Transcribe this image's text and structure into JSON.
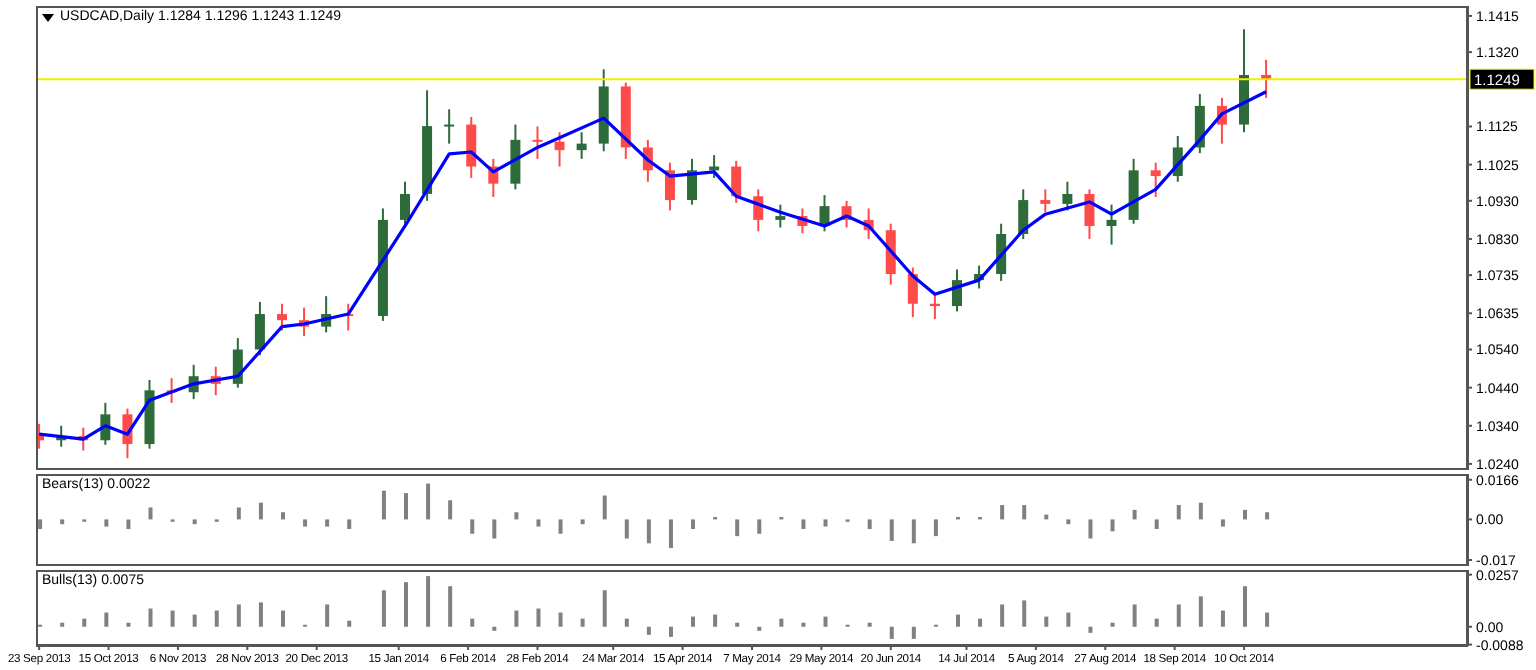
{
  "chart_data": [
    {
      "type": "candlestick",
      "title": "USDCAD,Daily 1.1284 1.1296 1.1243 1.1249",
      "x": [
        "2013-09-23",
        "2013-09-30",
        "2013-10-07",
        "2013-10-14",
        "2013-10-21",
        "2013-10-28",
        "2013-11-04",
        "2013-11-11",
        "2013-11-18",
        "2013-11-25",
        "2013-12-02",
        "2013-12-09",
        "2013-12-16",
        "2013-12-23",
        "2013-12-30",
        "2014-01-10",
        "2014-01-17",
        "2014-01-24",
        "2014-01-31",
        "2014-02-07",
        "2014-02-14",
        "2014-02-21",
        "2014-02-28",
        "2014-03-07",
        "2014-03-14",
        "2014-03-21",
        "2014-03-28",
        "2014-04-04",
        "2014-04-11",
        "2014-04-18",
        "2014-04-25",
        "2014-05-02",
        "2014-05-09",
        "2014-05-16",
        "2014-05-23",
        "2014-05-30",
        "2014-06-06",
        "2014-06-13",
        "2014-06-20",
        "2014-06-27",
        "2014-07-04",
        "2014-07-11",
        "2014-07-18",
        "2014-07-25",
        "2014-08-01",
        "2014-08-08",
        "2014-08-15",
        "2014-08-22",
        "2014-08-29",
        "2014-09-05",
        "2014-09-12",
        "2014-09-19",
        "2014-09-26",
        "2014-10-03",
        "2014-10-10",
        "2014-10-17"
      ],
      "ohlc": [
        [
          1.032,
          1.0345,
          1.028,
          1.0302
        ],
        [
          1.0302,
          1.034,
          1.0285,
          1.0313
        ],
        [
          1.0313,
          1.0335,
          1.0275,
          1.0302
        ],
        [
          1.0302,
          1.04,
          1.029,
          1.037
        ],
        [
          1.037,
          1.0385,
          1.0255,
          1.0292
        ],
        [
          1.0292,
          1.046,
          1.028,
          1.0433
        ],
        [
          1.0433,
          1.0465,
          1.04,
          1.0428
        ],
        [
          1.0428,
          1.05,
          1.041,
          1.047
        ],
        [
          1.047,
          1.0495,
          1.042,
          1.045
        ],
        [
          1.045,
          1.057,
          1.044,
          1.054
        ],
        [
          1.054,
          1.0665,
          1.0525,
          1.0633
        ],
        [
          1.0633,
          1.066,
          1.059,
          1.0617
        ],
        [
          1.0617,
          1.065,
          1.0575,
          1.06
        ],
        [
          1.06,
          1.068,
          1.0585,
          1.0633
        ],
        [
          1.0633,
          1.066,
          1.059,
          1.0628
        ],
        [
          1.0628,
          1.091,
          1.0615,
          1.088
        ],
        [
          1.088,
          1.098,
          1.086,
          1.0948
        ],
        [
          1.0948,
          1.122,
          1.093,
          1.1126
        ],
        [
          1.1126,
          1.117,
          1.108,
          1.113
        ],
        [
          1.113,
          1.115,
          1.099,
          1.102
        ],
        [
          1.102,
          1.104,
          1.094,
          1.0975
        ],
        [
          1.0975,
          1.113,
          1.096,
          1.109
        ],
        [
          1.109,
          1.1125,
          1.104,
          1.1085
        ],
        [
          1.1085,
          1.111,
          1.102,
          1.1063
        ],
        [
          1.1063,
          1.111,
          1.104,
          1.108
        ],
        [
          1.108,
          1.1275,
          1.106,
          1.123
        ],
        [
          1.123,
          1.124,
          1.104,
          1.107
        ],
        [
          1.107,
          1.109,
          1.098,
          1.101
        ],
        [
          1.101,
          1.103,
          1.0905,
          1.0932
        ],
        [
          1.0932,
          1.104,
          1.092,
          1.101
        ],
        [
          1.101,
          1.105,
          1.099,
          1.102
        ],
        [
          1.102,
          1.1035,
          1.0925,
          1.0942
        ],
        [
          1.0942,
          1.096,
          1.085,
          1.088
        ],
        [
          1.088,
          1.092,
          1.086,
          1.089
        ],
        [
          1.089,
          1.091,
          1.0845,
          1.0864
        ],
        [
          1.0864,
          1.0945,
          1.085,
          1.0916
        ],
        [
          1.0916,
          1.093,
          1.086,
          1.088
        ],
        [
          1.088,
          1.091,
          1.083,
          1.0853
        ],
        [
          1.0853,
          1.087,
          1.071,
          1.0738
        ],
        [
          1.0738,
          1.0755,
          1.0625,
          1.066
        ],
        [
          1.066,
          1.069,
          1.062,
          1.0654
        ],
        [
          1.0654,
          1.075,
          1.064,
          1.0722
        ],
        [
          1.0722,
          1.076,
          1.07,
          1.0738
        ],
        [
          1.0738,
          1.087,
          1.072,
          1.0843
        ],
        [
          1.0843,
          1.096,
          1.083,
          1.0932
        ],
        [
          1.0932,
          1.096,
          1.09,
          1.0922
        ],
        [
          1.0922,
          1.098,
          1.0905,
          1.0948
        ],
        [
          1.0948,
          1.096,
          1.083,
          1.0864
        ],
        [
          1.0864,
          1.092,
          1.0815,
          1.088
        ],
        [
          1.088,
          1.104,
          1.087,
          1.101
        ],
        [
          1.101,
          1.103,
          1.094,
          1.0995
        ],
        [
          1.0995,
          1.11,
          1.098,
          1.107
        ],
        [
          1.107,
          1.121,
          1.1055,
          1.1179
        ],
        [
          1.1179,
          1.12,
          1.108,
          1.113
        ],
        [
          1.113,
          1.138,
          1.111,
          1.126
        ],
        [
          1.126,
          1.13,
          1.12,
          1.1249
        ]
      ],
      "colors": [
        "#ff4a4a",
        "#2e6b3a",
        "#ff4a4a",
        "#2e6b3a",
        "#ff4a4a",
        "#2e6b3a",
        "#ff4a4a",
        "#2e6b3a",
        "#ff4a4a",
        "#2e6b3a",
        "#2e6b3a",
        "#ff4a4a",
        "#ff4a4a",
        "#2e6b3a",
        "#ff4a4a",
        "#2e6b3a",
        "#2e6b3a",
        "#2e6b3a",
        "#2e6b3a",
        "#ff4a4a",
        "#ff4a4a",
        "#2e6b3a",
        "#ff4a4a",
        "#ff4a4a",
        "#2e6b3a",
        "#2e6b3a",
        "#ff4a4a",
        "#ff4a4a",
        "#ff4a4a",
        "#2e6b3a",
        "#2e6b3a",
        "#ff4a4a",
        "#ff4a4a",
        "#2e6b3a",
        "#ff4a4a",
        "#2e6b3a",
        "#ff4a4a",
        "#ff4a4a",
        "#ff4a4a",
        "#ff4a4a",
        "#ff4a4a",
        "#2e6b3a",
        "#2e6b3a",
        "#2e6b3a",
        "#2e6b3a",
        "#ff4a4a",
        "#2e6b3a",
        "#ff4a4a",
        "#2e6b3a",
        "#2e6b3a",
        "#ff4a4a",
        "#2e6b3a",
        "#2e6b3a",
        "#ff4a4a",
        "#2e6b3a",
        "#ff4a4a"
      ],
      "series": [
        {
          "type": "line",
          "color": "#0000ff",
          "x": [
            "2013-09-23",
            "2013-10-07",
            "2013-10-14",
            "2013-10-21",
            "2013-10-28",
            "2013-11-11",
            "2013-11-25",
            "2013-12-09",
            "2013-12-16",
            "2013-12-30",
            "2014-01-17",
            "2014-01-31",
            "2014-02-07",
            "2014-02-14",
            "2014-02-28",
            "2014-03-21",
            "2014-04-04",
            "2014-04-11",
            "2014-04-25",
            "2014-05-02",
            "2014-05-16",
            "2014-05-30",
            "2014-06-06",
            "2014-06-13",
            "2014-06-27",
            "2014-07-04",
            "2014-07-18",
            "2014-08-01",
            "2014-08-08",
            "2014-08-22",
            "2014-08-29",
            "2014-09-12",
            "2014-09-26",
            "2014-10-03",
            "2014-10-17"
          ],
          "values": [
            1.0318,
            1.0305,
            1.034,
            1.0318,
            1.0407,
            1.045,
            1.047,
            1.06,
            1.0607,
            1.0633,
            1.0864,
            1.1053,
            1.1058,
            1.1006,
            1.107,
            1.1147,
            1.1037,
            1.0995,
            1.1006,
            1.0942,
            1.09,
            1.0864,
            1.089,
            1.0864,
            1.0733,
            1.0685,
            1.0722,
            1.0853,
            1.0895,
            1.0927,
            1.0895,
            1.096,
            1.109,
            1.1158,
            1.1216
          ]
        }
      ],
      "ref_lines": [
        {
          "axis": "y",
          "value": 1.1249,
          "label": "1.1249",
          "color": "#f0f000"
        }
      ],
      "xlim": [
        "2013-09-22",
        "2014-12-20"
      ],
      "ylim": [
        1.0224,
        1.1441
      ],
      "yticks": [
        {
          "value": 1.1415,
          "label": "1.1415"
        },
        {
          "value": 1.132,
          "label": "1.1320"
        },
        {
          "value": 1.1125,
          "label": "1.1125"
        },
        {
          "value": 1.1025,
          "label": "1.1025"
        },
        {
          "value": 1.093,
          "label": "1.0930"
        },
        {
          "value": 1.083,
          "label": "1.0830"
        },
        {
          "value": 1.0735,
          "label": "1.0735"
        },
        {
          "value": 1.0635,
          "label": "1.0635"
        },
        {
          "value": 1.054,
          "label": "1.0540"
        },
        {
          "value": 1.044,
          "label": "1.0440"
        },
        {
          "value": 1.034,
          "label": "1.0340"
        },
        {
          "value": 1.024,
          "label": "1.0240"
        }
      ],
      "tick_labels": "y"
    },
    {
      "type": "bar",
      "title": "Bears(13) 0.0022",
      "color": "#808080",
      "x": [
        "2013-09-23",
        "2013-09-30",
        "2013-10-07",
        "2013-10-14",
        "2013-10-21",
        "2013-10-28",
        "2013-11-04",
        "2013-11-11",
        "2013-11-18",
        "2013-11-25",
        "2013-12-02",
        "2013-12-09",
        "2013-12-16",
        "2013-12-23",
        "2013-12-30",
        "2014-01-10",
        "2014-01-17",
        "2014-01-24",
        "2014-01-31",
        "2014-02-07",
        "2014-02-14",
        "2014-02-21",
        "2014-02-28",
        "2014-03-07",
        "2014-03-14",
        "2014-03-21",
        "2014-03-28",
        "2014-04-04",
        "2014-04-11",
        "2014-04-18",
        "2014-04-25",
        "2014-05-02",
        "2014-05-09",
        "2014-05-16",
        "2014-05-23",
        "2014-05-30",
        "2014-06-06",
        "2014-06-13",
        "2014-06-20",
        "2014-06-27",
        "2014-07-04",
        "2014-07-11",
        "2014-07-18",
        "2014-07-25",
        "2014-08-01",
        "2014-08-08",
        "2014-08-15",
        "2014-08-22",
        "2014-08-29",
        "2014-09-05",
        "2014-09-12",
        "2014-09-19",
        "2014-09-26",
        "2014-10-03",
        "2014-10-10",
        "2014-10-17"
      ],
      "values": [
        -0.004,
        -0.002,
        -0.001,
        -0.003,
        -0.004,
        0.005,
        -0.001,
        -0.002,
        -0.001,
        0.005,
        0.007,
        0.003,
        -0.003,
        -0.003,
        -0.004,
        0.012,
        0.011,
        0.015,
        0.008,
        -0.006,
        -0.008,
        0.003,
        -0.003,
        -0.006,
        -0.002,
        0.01,
        -0.008,
        -0.01,
        -0.012,
        -0.004,
        0.001,
        -0.007,
        -0.006,
        0.001,
        -0.004,
        -0.003,
        -0.001,
        -0.004,
        -0.009,
        -0.01,
        -0.007,
        0.001,
        0.001,
        0.006,
        0.006,
        0.002,
        -0.002,
        -0.008,
        -0.005,
        0.004,
        -0.004,
        0.006,
        0.007,
        -0.003,
        0.004,
        0.003
      ],
      "xlim": [
        "2013-09-22",
        "2014-12-20"
      ],
      "ylim": [
        -0.0195,
        0.019
      ],
      "yticks": [
        0.0166,
        {
          "value": 0,
          "label": "0.00"
        },
        -0.017
      ],
      "tick_labels": "y"
    },
    {
      "type": "bar",
      "title": "Bulls(13) 0.0075",
      "color": "#808080",
      "x": [
        "2013-09-23",
        "2013-09-30",
        "2013-10-07",
        "2013-10-14",
        "2013-10-21",
        "2013-10-28",
        "2013-11-04",
        "2013-11-11",
        "2013-11-18",
        "2013-11-25",
        "2013-12-02",
        "2013-12-09",
        "2013-12-16",
        "2013-12-23",
        "2013-12-30",
        "2014-01-10",
        "2014-01-17",
        "2014-01-24",
        "2014-01-31",
        "2014-02-07",
        "2014-02-14",
        "2014-02-21",
        "2014-02-28",
        "2014-03-07",
        "2014-03-14",
        "2014-03-21",
        "2014-03-28",
        "2014-04-04",
        "2014-04-11",
        "2014-04-18",
        "2014-04-25",
        "2014-05-02",
        "2014-05-09",
        "2014-05-16",
        "2014-05-23",
        "2014-05-30",
        "2014-06-06",
        "2014-06-13",
        "2014-06-20",
        "2014-06-27",
        "2014-07-04",
        "2014-07-11",
        "2014-07-18",
        "2014-07-25",
        "2014-08-01",
        "2014-08-08",
        "2014-08-15",
        "2014-08-22",
        "2014-08-29",
        "2014-09-05",
        "2014-09-12",
        "2014-09-19",
        "2014-09-26",
        "2014-10-03",
        "2014-10-10",
        "2014-10-17"
      ],
      "values": [
        0.001,
        0.002,
        0.004,
        0.007,
        0.002,
        0.009,
        0.008,
        0.006,
        0.008,
        0.011,
        0.012,
        0.008,
        0.001,
        0.011,
        0.003,
        0.018,
        0.022,
        0.025,
        0.02,
        0.004,
        -0.002,
        0.008,
        0.009,
        0.007,
        0.004,
        0.018,
        0.004,
        -0.004,
        -0.005,
        0.005,
        0.006,
        0.002,
        -0.002,
        0.004,
        0.002,
        0.005,
        0.001,
        0.002,
        -0.006,
        -0.006,
        0.001,
        0.006,
        0.004,
        0.011,
        0.013,
        0.005,
        0.007,
        -0.003,
        0.002,
        0.011,
        0.004,
        0.011,
        0.015,
        0.008,
        0.02,
        0.007
      ],
      "xlim": [
        "2013-09-22",
        "2014-12-20"
      ],
      "ylim": [
        -0.0095,
        0.028
      ],
      "yticks": [
        0.0257,
        {
          "value": 0,
          "label": "0.00"
        },
        -0.0088
      ],
      "xticks": [
        {
          "value": "2013-09-23",
          "label": "23 Sep 2013"
        },
        {
          "value": "2013-10-15",
          "label": "15 Oct 2013"
        },
        {
          "value": "2013-11-06",
          "label": "6 Nov 2013"
        },
        {
          "value": "2013-11-28",
          "label": "28 Nov 2013"
        },
        {
          "value": "2013-12-20",
          "label": "20 Dec 2013"
        },
        {
          "value": "2014-01-15",
          "label": "15 Jan 2014"
        },
        {
          "value": "2014-02-06",
          "label": "6 Feb 2014"
        },
        {
          "value": "2014-02-28",
          "label": "28 Feb 2014"
        },
        {
          "value": "2014-03-24",
          "label": "24 Mar 2014"
        },
        {
          "value": "2014-04-15",
          "label": "15 Apr 2014"
        },
        {
          "value": "2014-05-07",
          "label": "7 May 2014"
        },
        {
          "value": "2014-05-29",
          "label": "29 May 2014"
        },
        {
          "value": "2014-06-20",
          "label": "20 Jun 2014"
        },
        {
          "value": "2014-07-14",
          "label": "14 Jul 2014"
        },
        {
          "value": "2014-08-05",
          "label": "5 Aug 2014"
        },
        {
          "value": "2014-08-27",
          "label": "27 Aug 2014"
        },
        {
          "value": "2014-09-18",
          "label": "18 Sep 2014"
        },
        {
          "value": "2014-10-10",
          "label": "10 Oct 2014"
        }
      ]
    }
  ]
}
